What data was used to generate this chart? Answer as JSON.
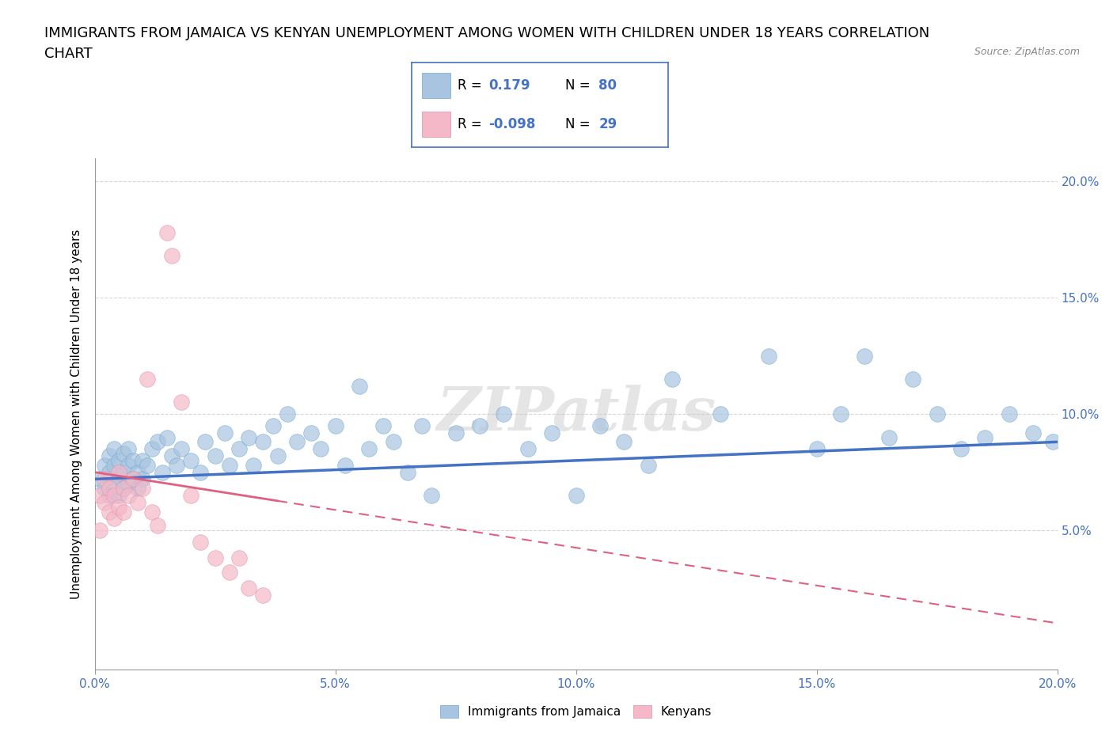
{
  "title_line1": "IMMIGRANTS FROM JAMAICA VS KENYAN UNEMPLOYMENT AMONG WOMEN WITH CHILDREN UNDER 18 YEARS CORRELATION",
  "title_line2": "CHART",
  "source": "Source: ZipAtlas.com",
  "ylabel": "Unemployment Among Women with Children Under 18 years",
  "xlim": [
    0.0,
    0.2
  ],
  "ylim": [
    -0.01,
    0.21
  ],
  "xticks": [
    0.0,
    0.05,
    0.1,
    0.15,
    0.2
  ],
  "yticks": [
    0.05,
    0.1,
    0.15,
    0.2
  ],
  "xticklabels": [
    "0.0%",
    "5.0%",
    "10.0%",
    "15.0%",
    "20.0%"
  ],
  "yticklabels": [
    "5.0%",
    "10.0%",
    "15.0%",
    "20.0%"
  ],
  "blue_color": "#a8c4e0",
  "blue_edge_color": "#6fa8d0",
  "blue_line_color": "#4472c4",
  "pink_color": "#f4b8c8",
  "pink_edge_color": "#e090a8",
  "pink_line_color": "#e06080",
  "legend_label1": "Immigrants from Jamaica",
  "legend_label2": "Kenyans",
  "watermark": "ZIPatlas",
  "blue_x": [
    0.001,
    0.002,
    0.002,
    0.003,
    0.003,
    0.003,
    0.004,
    0.004,
    0.004,
    0.005,
    0.005,
    0.005,
    0.006,
    0.006,
    0.006,
    0.007,
    0.007,
    0.007,
    0.008,
    0.008,
    0.009,
    0.009,
    0.01,
    0.01,
    0.011,
    0.012,
    0.013,
    0.014,
    0.015,
    0.016,
    0.017,
    0.018,
    0.02,
    0.022,
    0.023,
    0.025,
    0.027,
    0.028,
    0.03,
    0.032,
    0.033,
    0.035,
    0.037,
    0.038,
    0.04,
    0.042,
    0.045,
    0.047,
    0.05,
    0.052,
    0.055,
    0.057,
    0.06,
    0.062,
    0.065,
    0.068,
    0.07,
    0.075,
    0.08,
    0.085,
    0.09,
    0.095,
    0.1,
    0.105,
    0.11,
    0.115,
    0.12,
    0.13,
    0.14,
    0.15,
    0.155,
    0.16,
    0.165,
    0.17,
    0.175,
    0.18,
    0.185,
    0.19,
    0.195,
    0.199
  ],
  "blue_y": [
    0.072,
    0.068,
    0.078,
    0.065,
    0.075,
    0.082,
    0.07,
    0.078,
    0.085,
    0.065,
    0.072,
    0.08,
    0.068,
    0.075,
    0.083,
    0.07,
    0.078,
    0.085,
    0.072,
    0.08,
    0.068,
    0.075,
    0.072,
    0.08,
    0.078,
    0.085,
    0.088,
    0.075,
    0.09,
    0.082,
    0.078,
    0.085,
    0.08,
    0.075,
    0.088,
    0.082,
    0.092,
    0.078,
    0.085,
    0.09,
    0.078,
    0.088,
    0.095,
    0.082,
    0.1,
    0.088,
    0.092,
    0.085,
    0.095,
    0.078,
    0.112,
    0.085,
    0.095,
    0.088,
    0.075,
    0.095,
    0.065,
    0.092,
    0.095,
    0.1,
    0.085,
    0.092,
    0.065,
    0.095,
    0.088,
    0.078,
    0.115,
    0.1,
    0.125,
    0.085,
    0.1,
    0.125,
    0.09,
    0.115,
    0.1,
    0.085,
    0.09,
    0.1,
    0.092,
    0.088
  ],
  "pink_x": [
    0.001,
    0.001,
    0.002,
    0.002,
    0.003,
    0.003,
    0.004,
    0.004,
    0.005,
    0.005,
    0.006,
    0.006,
    0.007,
    0.008,
    0.009,
    0.01,
    0.011,
    0.012,
    0.013,
    0.015,
    0.016,
    0.018,
    0.02,
    0.022,
    0.025,
    0.028,
    0.03,
    0.032,
    0.035
  ],
  "pink_y": [
    0.065,
    0.05,
    0.062,
    0.072,
    0.058,
    0.068,
    0.055,
    0.065,
    0.06,
    0.075,
    0.058,
    0.068,
    0.065,
    0.072,
    0.062,
    0.068,
    0.115,
    0.058,
    0.052,
    0.178,
    0.168,
    0.105,
    0.065,
    0.045,
    0.038,
    0.032,
    0.038,
    0.025,
    0.022
  ],
  "title_fontsize": 13,
  "axis_label_fontsize": 11,
  "tick_fontsize": 11,
  "background_color": "#ffffff",
  "grid_color": "#bbbbbb"
}
